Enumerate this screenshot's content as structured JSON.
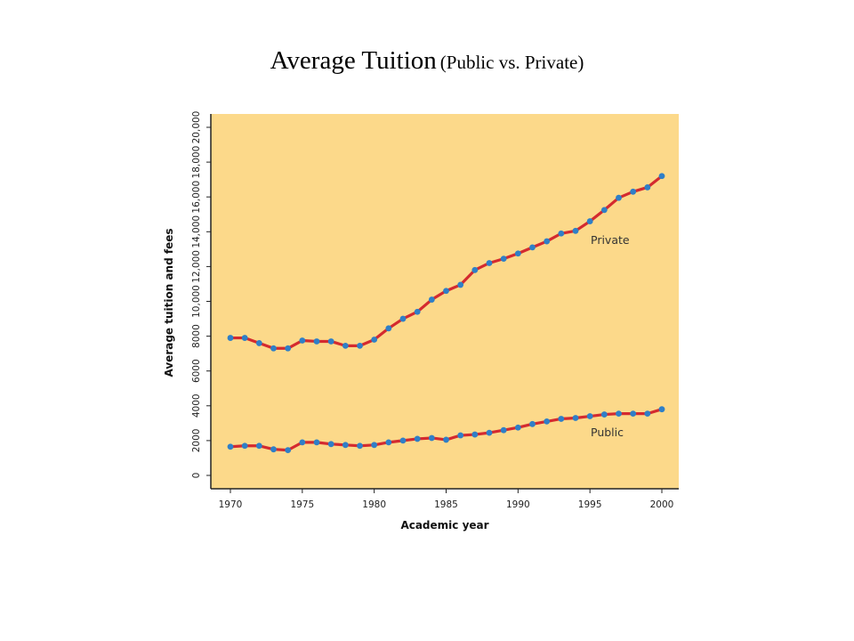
{
  "slide": {
    "title_main": "Average Tuition",
    "title_sub": "(Public vs. Private)"
  },
  "colors": {
    "plot_background": "#fcd98a",
    "line": "#d42a2f",
    "marker": "#2f7fc7"
  },
  "chart_data": {
    "type": "line",
    "xlabel": "Academic year",
    "ylabel": "Average tuition and fees",
    "xlim": [
      1970,
      2000
    ],
    "ylim": [
      0,
      20000
    ],
    "x_ticks": [
      "1970",
      "1975",
      "1980",
      "1985",
      "1990",
      "1995",
      "2000"
    ],
    "y_ticks": [
      "0",
      "2000",
      "4000",
      "6000",
      "8000",
      "10,000",
      "12,000",
      "14,000",
      "16,000",
      "18,000",
      "20,000"
    ],
    "grid": false,
    "x": [
      1970,
      1971,
      1972,
      1973,
      1974,
      1975,
      1976,
      1977,
      1978,
      1979,
      1980,
      1981,
      1982,
      1983,
      1984,
      1985,
      1986,
      1987,
      1988,
      1989,
      1990,
      1991,
      1992,
      1993,
      1994,
      1995,
      1996,
      1997,
      1998,
      1999,
      2000
    ],
    "series": [
      {
        "name": "Private",
        "values": [
          7900,
          7900,
          7600,
          7300,
          7300,
          7750,
          7700,
          7700,
          7450,
          7450,
          7800,
          8450,
          9000,
          9400,
          10100,
          10600,
          10950,
          11800,
          12200,
          12450,
          12750,
          13100,
          13450,
          13900,
          14050,
          14600,
          15250,
          15950,
          16300,
          16550,
          17200
        ]
      },
      {
        "name": "Public",
        "values": [
          1650,
          1700,
          1700,
          1500,
          1450,
          1900,
          1900,
          1800,
          1750,
          1700,
          1750,
          1900,
          2000,
          2100,
          2150,
          2050,
          2300,
          2350,
          2450,
          2600,
          2750,
          2950,
          3100,
          3250,
          3300,
          3400,
          3500,
          3550,
          3550,
          3550,
          3800
        ]
      }
    ]
  }
}
